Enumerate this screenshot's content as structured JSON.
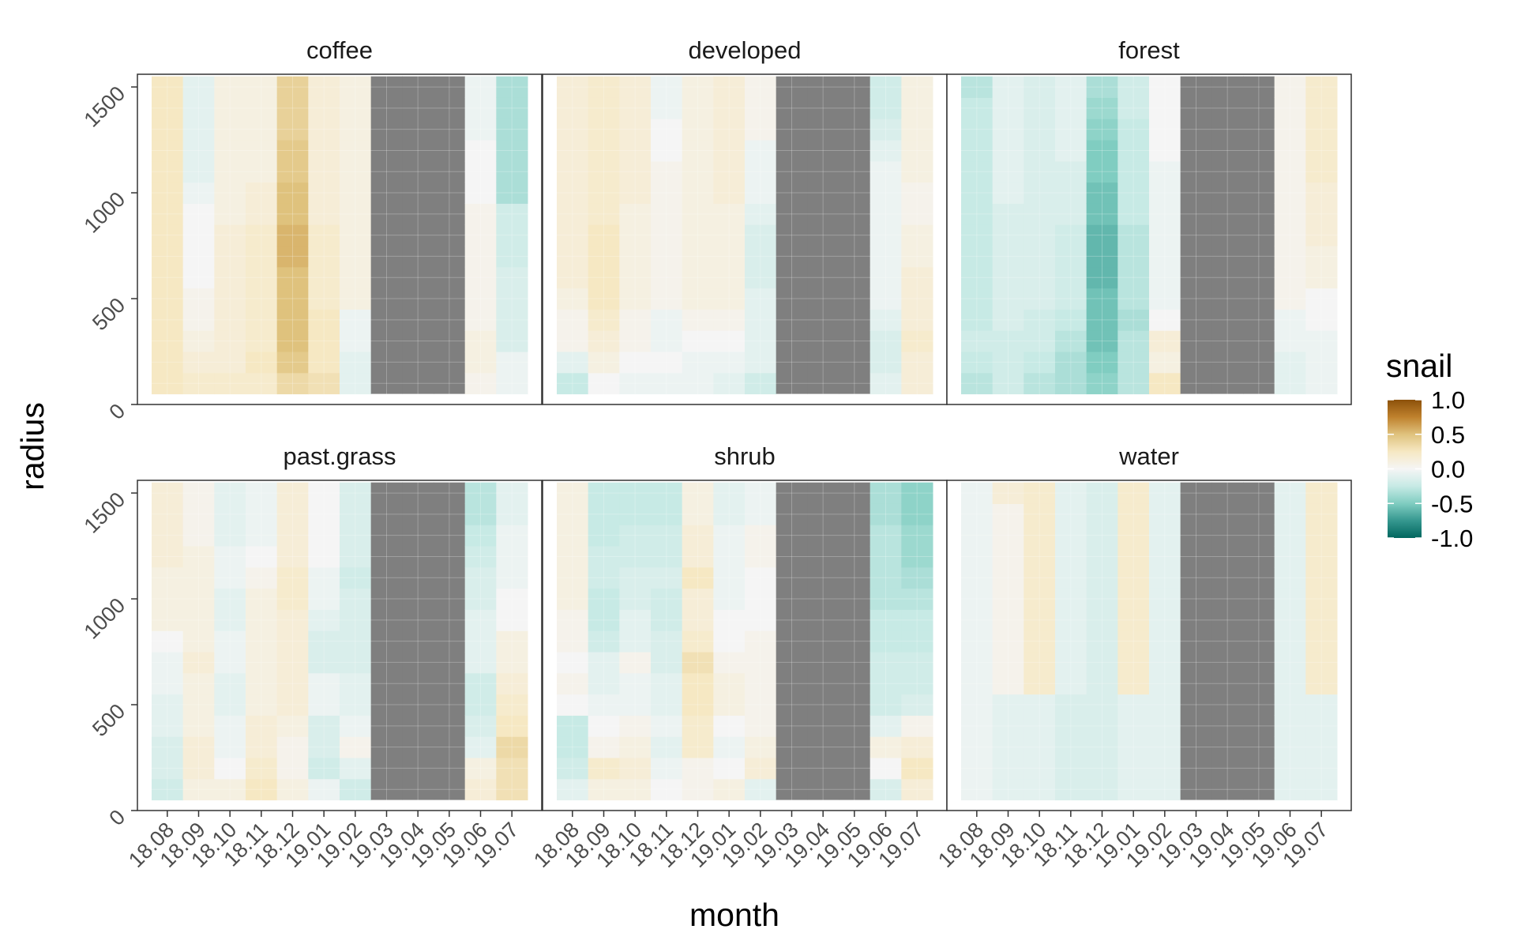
{
  "chart_data": {
    "type": "heatmap",
    "xlabel": "month",
    "ylabel": "radius",
    "x_categories": [
      "18.08",
      "18.09",
      "18.10",
      "18.11",
      "18.12",
      "19.01",
      "19.02",
      "19.03",
      "19.04",
      "19.05",
      "19.06",
      "19.07"
    ],
    "y_values": [
      100,
      200,
      300,
      400,
      500,
      600,
      700,
      800,
      900,
      1000,
      1100,
      1200,
      1300,
      1400,
      1500
    ],
    "y_ticks": [
      0,
      500,
      1000,
      1500
    ],
    "ylim": [
      0,
      1560
    ],
    "missing_color": "#7f7f7f",
    "grid": true,
    "legend": {
      "title": "snail",
      "position": "right",
      "ticks": [
        1.0,
        0.5,
        0.0,
        -0.5,
        -1.0
      ],
      "tick_labels": [
        "1.0",
        "0.5",
        "0.0",
        "-0.5",
        "-1.0"
      ],
      "range": [
        -1,
        1
      ],
      "palette": [
        "#01665e",
        "#35978f",
        "#80cdc1",
        "#c7eae5",
        "#f5f5f5",
        "#f6e8c3",
        "#dfc27d",
        "#bf812d",
        "#8c510a"
      ]
    },
    "panels": [
      {
        "title": "coffee",
        "values": {
          "18.08": [
            0.25,
            0.25,
            0.25,
            0.25,
            0.25,
            0.25,
            0.25,
            0.25,
            0.25,
            0.25,
            0.25,
            0.25,
            0.25,
            0.25,
            0.25
          ],
          "18.09": [
            0.2,
            0.15,
            0.1,
            0.05,
            0.05,
            0.0,
            0.0,
            0.0,
            0.0,
            -0.05,
            -0.1,
            -0.1,
            -0.1,
            -0.1,
            -0.1
          ],
          "18.10": [
            0.2,
            0.15,
            0.15,
            0.15,
            0.15,
            0.15,
            0.15,
            0.15,
            0.1,
            0.1,
            0.1,
            0.1,
            0.1,
            0.1,
            0.1
          ],
          "18.11": [
            0.2,
            0.25,
            0.2,
            0.2,
            0.2,
            0.2,
            0.2,
            0.2,
            0.15,
            0.15,
            0.1,
            0.1,
            0.1,
            0.1,
            0.1
          ],
          "18.12": [
            0.35,
            0.45,
            0.5,
            0.5,
            0.5,
            0.5,
            0.55,
            0.55,
            0.5,
            0.5,
            0.45,
            0.45,
            0.4,
            0.4,
            0.4
          ],
          "19.01": [
            0.3,
            0.25,
            0.25,
            0.25,
            0.2,
            0.2,
            0.2,
            0.2,
            0.15,
            0.15,
            0.15,
            0.15,
            0.15,
            0.15,
            0.15
          ],
          "19.02": [
            -0.1,
            -0.1,
            -0.05,
            -0.05,
            0.1,
            0.1,
            0.1,
            0.1,
            0.1,
            0.1,
            0.1,
            0.1,
            0.1,
            0.1,
            0.1
          ],
          "19.03": null,
          "19.04": null,
          "19.05": null,
          "19.06": [
            0.05,
            0.1,
            0.1,
            0.05,
            0.05,
            0.05,
            0.05,
            0.05,
            0.05,
            0.0,
            0.0,
            0.0,
            -0.05,
            -0.05,
            -0.05
          ],
          "19.07": [
            -0.05,
            -0.05,
            -0.15,
            -0.15,
            -0.15,
            -0.15,
            -0.2,
            -0.2,
            -0.2,
            -0.35,
            -0.35,
            -0.35,
            -0.35,
            -0.35,
            -0.35
          ]
        }
      },
      {
        "title": "developed",
        "values": {
          "18.08": [
            -0.25,
            -0.1,
            0.05,
            0.05,
            0.1,
            0.15,
            0.15,
            0.15,
            0.15,
            0.15,
            0.15,
            0.15,
            0.15,
            0.15,
            0.15
          ],
          "18.09": [
            0.0,
            0.1,
            0.15,
            0.2,
            0.25,
            0.25,
            0.25,
            0.25,
            0.2,
            0.2,
            0.2,
            0.2,
            0.2,
            0.2,
            0.2
          ],
          "18.10": [
            -0.05,
            0.0,
            0.05,
            0.05,
            0.1,
            0.1,
            0.1,
            0.1,
            0.1,
            0.15,
            0.15,
            0.15,
            0.15,
            0.15,
            0.15
          ],
          "18.11": [
            -0.05,
            0.0,
            -0.05,
            -0.05,
            0.05,
            0.05,
            0.05,
            0.05,
            0.05,
            0.05,
            0.05,
            0.0,
            0.0,
            -0.05,
            -0.05
          ],
          "18.12": [
            -0.05,
            -0.05,
            0.0,
            0.05,
            0.1,
            0.1,
            0.1,
            0.1,
            0.1,
            0.1,
            0.1,
            0.1,
            0.1,
            0.1,
            0.1
          ],
          "19.01": [
            -0.1,
            -0.05,
            0.0,
            0.05,
            0.1,
            0.1,
            0.1,
            0.1,
            0.1,
            0.15,
            0.15,
            0.15,
            0.15,
            0.15,
            0.15
          ],
          "19.02": [
            -0.2,
            -0.1,
            -0.1,
            -0.1,
            -0.1,
            -0.15,
            -0.15,
            -0.15,
            -0.1,
            -0.05,
            -0.05,
            -0.05,
            0.05,
            0.05,
            0.05
          ],
          "19.03": null,
          "19.04": null,
          "19.05": null,
          "19.06": [
            -0.1,
            -0.15,
            -0.15,
            -0.1,
            -0.05,
            -0.05,
            -0.05,
            -0.05,
            -0.05,
            -0.05,
            -0.05,
            -0.1,
            -0.15,
            -0.2,
            -0.2
          ],
          "19.07": [
            0.15,
            0.15,
            0.2,
            0.15,
            0.15,
            0.15,
            0.1,
            0.1,
            0.05,
            0.05,
            0.1,
            0.1,
            0.1,
            0.1,
            0.1
          ]
        }
      },
      {
        "title": "forest",
        "values": {
          "18.08": [
            -0.3,
            -0.25,
            -0.2,
            -0.25,
            -0.25,
            -0.25,
            -0.25,
            -0.25,
            -0.25,
            -0.25,
            -0.25,
            -0.25,
            -0.25,
            -0.25,
            -0.3
          ],
          "18.09": [
            -0.2,
            -0.2,
            -0.2,
            -0.15,
            -0.15,
            -0.15,
            -0.15,
            -0.15,
            -0.15,
            -0.1,
            -0.1,
            -0.1,
            -0.1,
            -0.1,
            -0.1
          ],
          "18.10": [
            -0.3,
            -0.25,
            -0.2,
            -0.2,
            -0.15,
            -0.15,
            -0.15,
            -0.15,
            -0.15,
            -0.15,
            -0.15,
            -0.15,
            -0.15,
            -0.15,
            -0.15
          ],
          "18.11": [
            -0.35,
            -0.35,
            -0.3,
            -0.25,
            -0.2,
            -0.2,
            -0.2,
            -0.2,
            -0.15,
            -0.15,
            -0.15,
            -0.1,
            -0.1,
            -0.1,
            -0.1
          ],
          "18.12": [
            -0.45,
            -0.5,
            -0.55,
            -0.55,
            -0.55,
            -0.6,
            -0.6,
            -0.6,
            -0.55,
            -0.55,
            -0.5,
            -0.5,
            -0.45,
            -0.4,
            -0.35
          ],
          "19.01": [
            -0.3,
            -0.3,
            -0.3,
            -0.35,
            -0.3,
            -0.3,
            -0.3,
            -0.3,
            -0.25,
            -0.25,
            -0.25,
            -0.25,
            -0.25,
            -0.2,
            -0.2
          ],
          "19.02": [
            0.25,
            0.1,
            0.15,
            0.0,
            -0.05,
            -0.05,
            -0.05,
            -0.05,
            -0.05,
            -0.05,
            -0.05,
            0.0,
            0.0,
            0.0,
            0.0
          ],
          "19.03": null,
          "19.04": null,
          "19.05": null,
          "19.06": [
            -0.1,
            -0.1,
            -0.05,
            -0.05,
            0.05,
            0.05,
            0.05,
            0.05,
            0.05,
            0.05,
            0.05,
            0.05,
            0.05,
            0.05,
            0.05
          ],
          "19.07": [
            -0.05,
            -0.05,
            -0.05,
            0.0,
            0.0,
            0.1,
            0.1,
            0.15,
            0.15,
            0.15,
            0.2,
            0.2,
            0.2,
            0.2,
            0.2
          ]
        }
      },
      {
        "title": "past.grass",
        "values": {
          "18.08": [
            -0.2,
            -0.15,
            -0.15,
            -0.1,
            -0.1,
            -0.05,
            -0.05,
            0.0,
            0.1,
            0.1,
            0.1,
            0.15,
            0.15,
            0.15,
            0.15
          ],
          "18.09": [
            0.1,
            0.15,
            0.15,
            0.1,
            0.1,
            0.1,
            0.15,
            0.1,
            0.1,
            0.1,
            0.1,
            0.1,
            0.05,
            0.05,
            0.05
          ],
          "18.10": [
            0.1,
            0.0,
            -0.05,
            -0.05,
            -0.1,
            -0.1,
            -0.05,
            -0.05,
            -0.1,
            -0.1,
            -0.05,
            -0.05,
            -0.1,
            -0.1,
            -0.1
          ],
          "18.11": [
            0.25,
            0.2,
            0.15,
            0.15,
            0.1,
            0.1,
            0.1,
            0.1,
            0.1,
            0.1,
            0.05,
            0.0,
            -0.05,
            -0.05,
            -0.05
          ],
          "18.12": [
            0.1,
            0.05,
            0.05,
            0.1,
            0.15,
            0.15,
            0.15,
            0.15,
            0.15,
            0.2,
            0.2,
            0.15,
            0.15,
            0.15,
            0.15
          ],
          "19.01": [
            -0.05,
            -0.2,
            -0.15,
            -0.15,
            -0.05,
            -0.05,
            -0.15,
            -0.15,
            -0.1,
            -0.05,
            -0.05,
            0.0,
            0.0,
            0.0,
            0.0
          ],
          "19.02": [
            -0.2,
            -0.1,
            0.05,
            -0.05,
            -0.1,
            -0.1,
            -0.15,
            -0.15,
            -0.15,
            -0.15,
            -0.2,
            -0.15,
            -0.15,
            -0.15,
            -0.15
          ],
          "19.03": null,
          "19.04": null,
          "19.05": null,
          "19.06": [
            0.15,
            0.1,
            -0.1,
            -0.15,
            -0.2,
            -0.2,
            -0.1,
            -0.1,
            -0.1,
            -0.15,
            -0.15,
            -0.2,
            -0.25,
            -0.3,
            -0.3
          ],
          "19.07": [
            0.3,
            0.3,
            0.35,
            0.25,
            0.2,
            0.15,
            0.1,
            0.1,
            0.0,
            0.0,
            -0.05,
            -0.05,
            -0.05,
            -0.1,
            -0.1
          ]
        }
      },
      {
        "title": "shrub",
        "values": {
          "18.08": [
            -0.1,
            -0.2,
            -0.25,
            -0.25,
            0.0,
            0.05,
            0.0,
            0.05,
            0.05,
            0.1,
            0.1,
            0.1,
            0.1,
            0.1,
            0.1
          ],
          "18.09": [
            0.1,
            0.2,
            0.05,
            0.0,
            -0.05,
            -0.1,
            -0.1,
            -0.2,
            -0.25,
            -0.25,
            -0.2,
            -0.2,
            -0.25,
            -0.25,
            -0.25
          ],
          "18.10": [
            0.1,
            0.15,
            0.1,
            0.05,
            -0.05,
            -0.05,
            0.05,
            -0.1,
            -0.1,
            -0.15,
            -0.15,
            -0.2,
            -0.2,
            -0.25,
            -0.25
          ],
          "18.11": [
            0.0,
            -0.05,
            -0.1,
            -0.05,
            -0.1,
            -0.1,
            -0.15,
            -0.15,
            -0.2,
            -0.2,
            -0.15,
            -0.2,
            -0.2,
            -0.25,
            -0.25
          ],
          "18.12": [
            0.05,
            0.05,
            0.2,
            0.2,
            0.25,
            0.25,
            0.3,
            0.2,
            0.15,
            0.15,
            0.25,
            0.15,
            0.15,
            0.1,
            0.1
          ],
          "19.01": [
            0.1,
            0.0,
            -0.05,
            0.0,
            0.1,
            0.1,
            0.05,
            0.0,
            0.0,
            -0.05,
            -0.05,
            -0.05,
            -0.05,
            -0.1,
            -0.1
          ],
          "19.02": [
            -0.1,
            0.15,
            0.1,
            0.05,
            0.05,
            0.05,
            0.05,
            0.05,
            0.0,
            0.0,
            0.0,
            0.05,
            0.05,
            -0.05,
            -0.05
          ],
          "19.03": null,
          "19.04": null,
          "19.05": null,
          "19.06": [
            -0.15,
            0.0,
            0.1,
            -0.1,
            -0.2,
            -0.2,
            -0.2,
            -0.25,
            -0.25,
            -0.3,
            -0.3,
            -0.3,
            -0.3,
            -0.35,
            -0.35
          ],
          "19.07": [
            0.15,
            0.25,
            0.15,
            0.05,
            -0.15,
            -0.2,
            -0.2,
            -0.25,
            -0.25,
            -0.3,
            -0.35,
            -0.4,
            -0.4,
            -0.45,
            -0.45
          ]
        }
      },
      {
        "title": "water",
        "values": {
          "18.08": [
            -0.05,
            -0.05,
            -0.05,
            -0.05,
            -0.05,
            -0.05,
            -0.05,
            -0.05,
            -0.05,
            -0.05,
            -0.05,
            -0.05,
            -0.05,
            -0.05,
            -0.05
          ],
          "18.09": [
            -0.1,
            -0.1,
            -0.1,
            -0.1,
            -0.1,
            0.05,
            0.05,
            0.05,
            0.05,
            0.05,
            0.05,
            0.05,
            0.05,
            0.05,
            0.15
          ],
          "18.10": [
            -0.1,
            -0.1,
            -0.1,
            -0.1,
            -0.1,
            0.2,
            0.2,
            0.2,
            0.2,
            0.2,
            0.2,
            0.2,
            0.2,
            0.2,
            0.2
          ],
          "18.11": [
            -0.15,
            -0.15,
            -0.15,
            -0.15,
            -0.15,
            -0.1,
            -0.1,
            -0.1,
            -0.1,
            -0.1,
            -0.1,
            -0.1,
            -0.1,
            -0.1,
            -0.1
          ],
          "18.12": [
            -0.15,
            -0.15,
            -0.15,
            -0.15,
            -0.15,
            -0.15,
            -0.15,
            -0.15,
            -0.15,
            -0.15,
            -0.15,
            -0.15,
            -0.15,
            -0.15,
            -0.15
          ],
          "19.01": [
            -0.1,
            -0.1,
            -0.1,
            -0.1,
            -0.1,
            0.2,
            0.2,
            0.2,
            0.2,
            0.2,
            0.2,
            0.2,
            0.2,
            0.2,
            0.2
          ],
          "19.02": [
            -0.1,
            -0.1,
            -0.1,
            -0.1,
            -0.1,
            -0.1,
            -0.1,
            -0.1,
            -0.1,
            -0.1,
            -0.1,
            -0.1,
            -0.1,
            -0.1,
            -0.1
          ],
          "19.03": null,
          "19.04": null,
          "19.05": null,
          "19.06": [
            -0.1,
            -0.1,
            -0.1,
            -0.1,
            -0.1,
            -0.1,
            -0.1,
            -0.1,
            -0.1,
            -0.1,
            -0.1,
            -0.1,
            -0.1,
            -0.1,
            -0.1
          ],
          "19.07": [
            -0.1,
            -0.1,
            -0.1,
            -0.1,
            -0.1,
            0.2,
            0.2,
            0.2,
            0.2,
            0.2,
            0.2,
            0.2,
            0.2,
            0.2,
            0.2
          ]
        }
      }
    ]
  }
}
